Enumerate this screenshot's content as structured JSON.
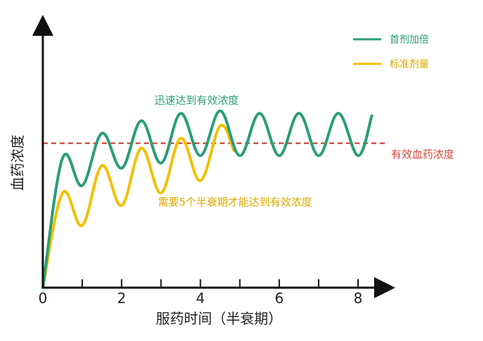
{
  "chart_data": {
    "type": "line",
    "title": "",
    "xlabel": "服药时间（半衰期）",
    "ylabel": "血药浓度",
    "xlim": [
      0,
      8.5
    ],
    "ylim": [
      0,
      10
    ],
    "x_ticks": [
      0,
      2,
      4,
      6,
      8
    ],
    "x_tick_labels": [
      "0",
      "2",
      "4",
      "6",
      "8"
    ],
    "minor_x_ticks": [
      1,
      3,
      5,
      7
    ],
    "legend_position": "top-right",
    "series": [
      {
        "name": "首剂加倍",
        "color": "#2a9d78",
        "x": [
          0,
          0.5,
          1.0,
          1.5,
          2.0,
          2.5,
          3.0,
          3.5,
          4.0,
          4.5,
          5.0,
          5.5,
          6.0,
          6.5,
          7.0,
          7.5,
          8.0,
          8.35
        ],
        "y": [
          0,
          5.2,
          4.1,
          6.2,
          4.8,
          6.7,
          5.0,
          7.0,
          5.3,
          7.1,
          5.3,
          7.0,
          5.3,
          7.0,
          5.3,
          7.0,
          5.3,
          6.9
        ]
      },
      {
        "name": "标准剂量",
        "color": "#f2c000",
        "x": [
          0,
          0.5,
          1.0,
          1.5,
          2.0,
          2.5,
          3.0,
          3.5,
          4.0,
          4.5,
          4.85
        ],
        "y": [
          0,
          3.8,
          2.5,
          4.9,
          3.3,
          5.6,
          3.8,
          6.0,
          4.3,
          6.5,
          5.5
        ]
      }
    ],
    "reference_line": {
      "label": "有效血药浓度",
      "y": 5.8,
      "color": "#d04a3a",
      "style": "dashed"
    },
    "annotations": [
      {
        "text": "迅速达到有效浓度",
        "color": "#2a9d78"
      },
      {
        "text": "需要5个半衰期才能达到有效浓度",
        "color": "#d9a800"
      }
    ]
  }
}
